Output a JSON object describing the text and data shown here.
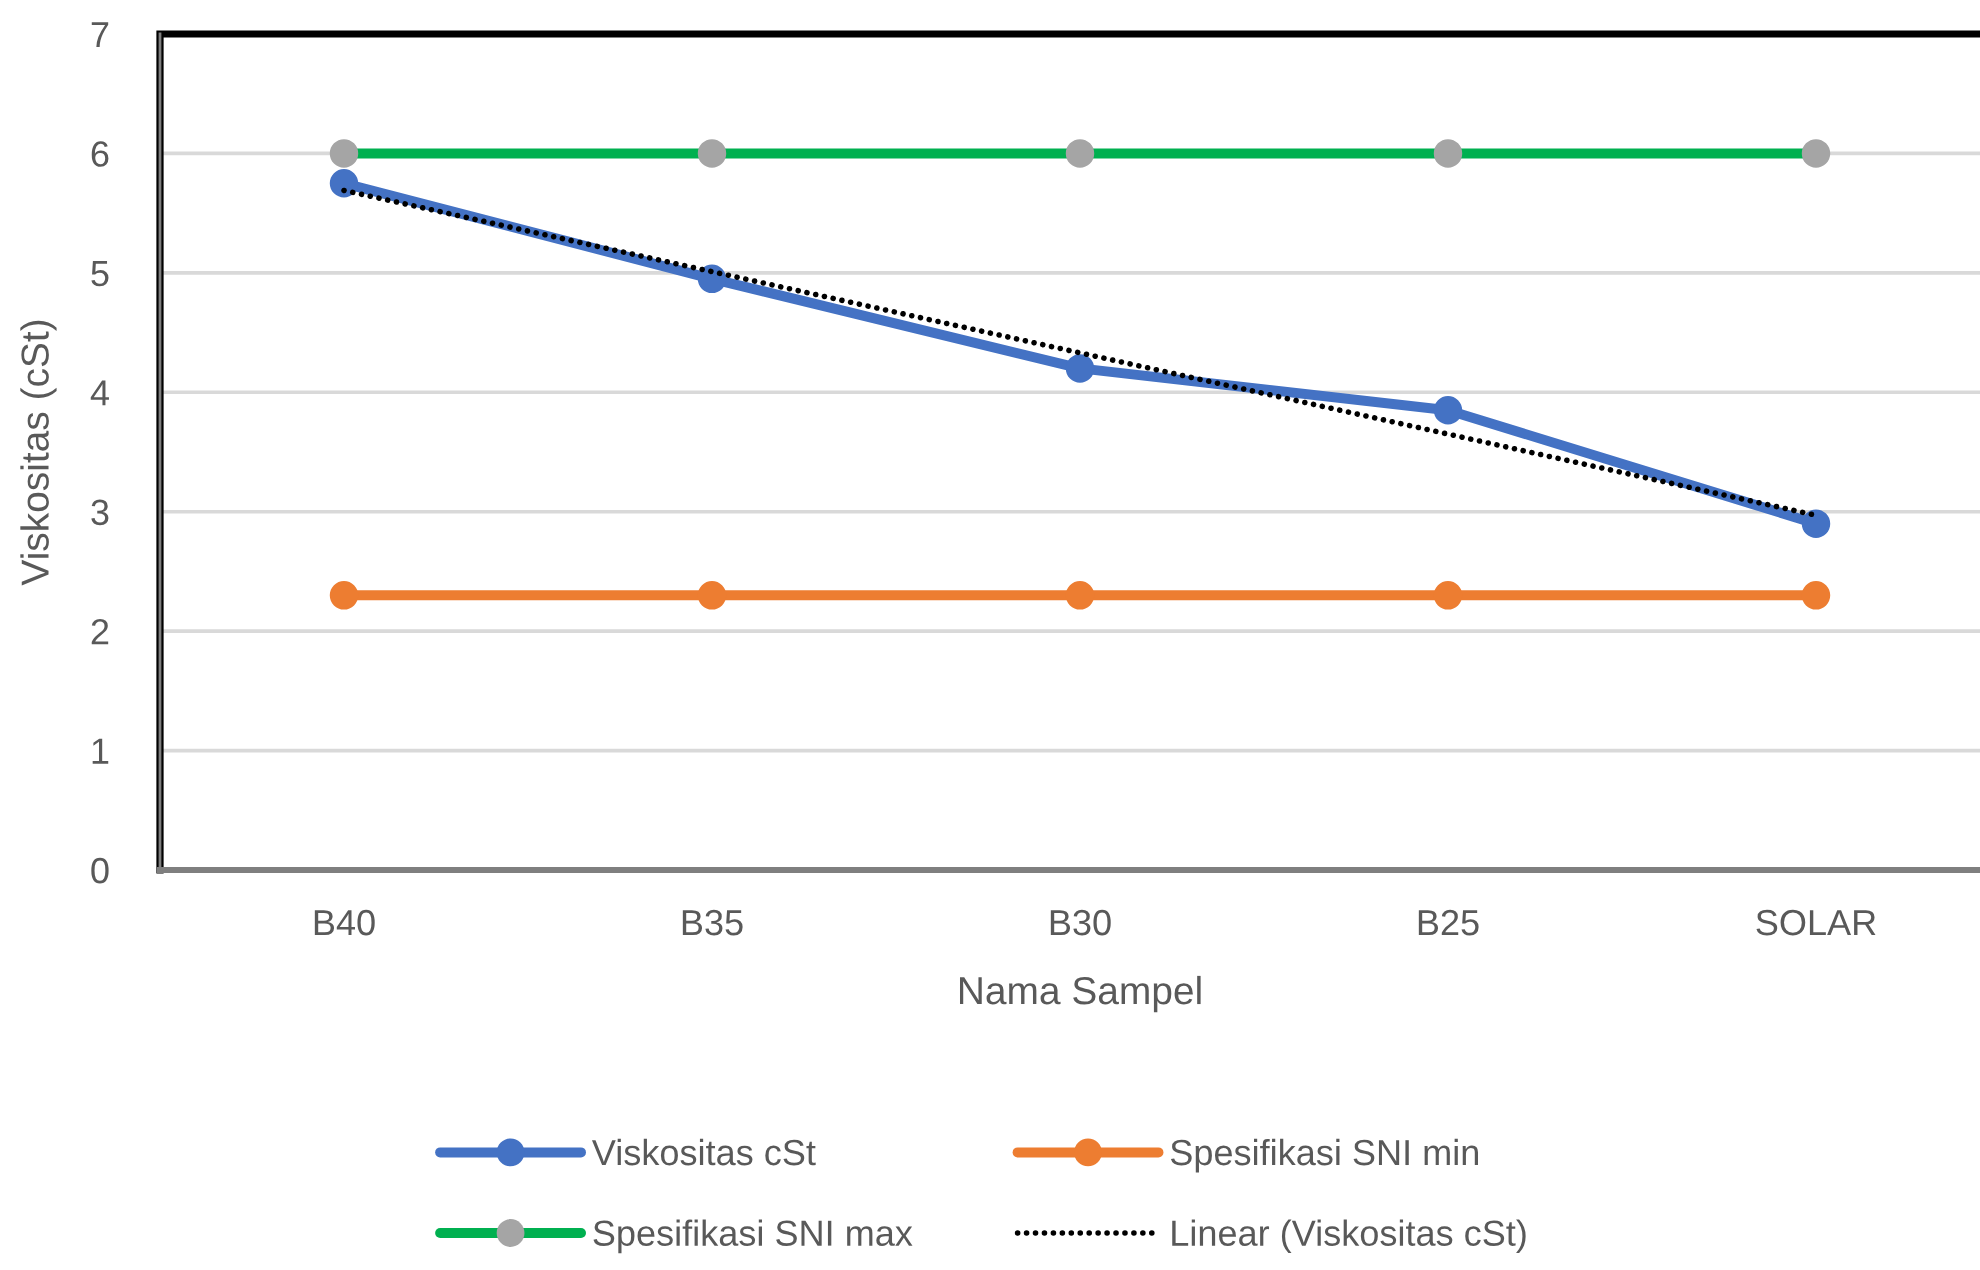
{
  "chart_data": {
    "type": "line",
    "xlabel": "Nama Sampel",
    "ylabel": "Viskositas (cSt)",
    "categories": [
      "B40",
      "B35",
      "B30",
      "B25",
      "SOLAR"
    ],
    "series": [
      {
        "name": "Viskositas cSt",
        "color": "#4472c4",
        "values": [
          5.75,
          4.95,
          4.2,
          3.85,
          2.9
        ]
      },
      {
        "name": "Spesifikasi SNI min",
        "color": "#ed7d31",
        "values": [
          2.3,
          2.3,
          2.3,
          2.3,
          2.3
        ]
      },
      {
        "name": "Spesifikasi SNI max",
        "color": "#00b050",
        "colors": [
          "#a5a5a5",
          "#a5a5a5",
          "#a5a5a5",
          "#a5a5a5",
          "#a5a5a5"
        ],
        "values": [
          6,
          6,
          6,
          6,
          6
        ]
      },
      {
        "name": "Linear (Viskositas cSt)",
        "color": "#000000",
        "values": [
          5.69,
          5.01,
          4.33,
          3.65,
          2.97
        ],
        "marker": "none",
        "line_style": "dotted"
      }
    ],
    "ylim": [
      0,
      7
    ],
    "yticks": [
      0,
      1,
      2,
      3,
      4,
      5,
      6,
      7
    ],
    "grid": "y",
    "legend": "bottom",
    "marker": "circle",
    "line_style": "solid"
  }
}
